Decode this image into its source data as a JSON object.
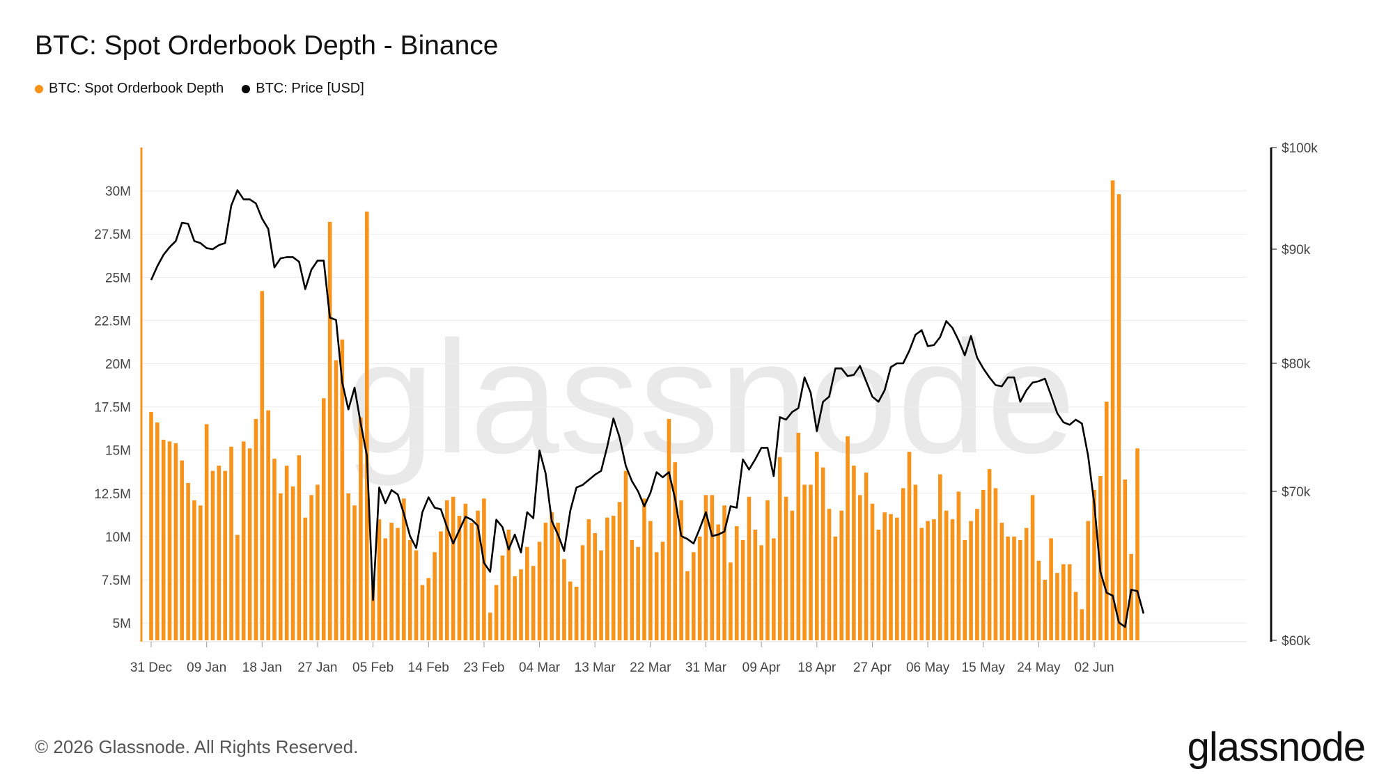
{
  "title": "BTC: Spot Orderbook Depth - Binance",
  "legend": [
    {
      "label": "BTC: Spot Orderbook Depth",
      "color": "#f7931a"
    },
    {
      "label": "BTC: Price [USD]",
      "color": "#000000"
    }
  ],
  "watermark": "glassnode",
  "footer": "© 2026 Glassnode. All Rights Reserved.",
  "brand": "glassnode",
  "chart_data": {
    "type": "bar",
    "start_date": "2025-12-31",
    "x_ticks": [
      "31 Dec",
      "09 Jan",
      "18 Jan",
      "27 Jan",
      "05 Feb",
      "14 Feb",
      "23 Feb",
      "04 Mar",
      "13 Mar",
      "22 Mar",
      "31 Mar",
      "09 Apr",
      "18 Apr",
      "27 Apr",
      "06 May",
      "15 May",
      "24 May",
      "02 Jun"
    ],
    "y_left": {
      "ticks": [
        "5M",
        "7.5M",
        "10M",
        "12.5M",
        "15M",
        "17.5M",
        "20M",
        "22.5M",
        "25M",
        "27.5M",
        "30M"
      ],
      "min": 4,
      "max": 32.5
    },
    "y_right": {
      "ticks": [
        "$60k",
        "$70k",
        "$80k",
        "$90k",
        "$100k"
      ],
      "tick_values": [
        60,
        70,
        80,
        90,
        100
      ]
    },
    "series": [
      {
        "name": "BTC: Spot Orderbook Depth",
        "color": "#f7931a",
        "type": "bar",
        "values": [
          17.2,
          16.6,
          15.6,
          15.5,
          15.4,
          14.4,
          13.1,
          12.1,
          11.8,
          16.5,
          13.8,
          14.1,
          13.8,
          15.2,
          10.1,
          15.5,
          15.1,
          16.8,
          24.2,
          17.3,
          14.5,
          12.5,
          14.1,
          12.9,
          14.7,
          11.1,
          12.4,
          13.0,
          18.0,
          28.2,
          20.2,
          21.4,
          12.5,
          11.8,
          16.9,
          28.8,
          7.3,
          11.0,
          9.9,
          10.8,
          10.5,
          12.2,
          9.8,
          9.2,
          7.2,
          7.6,
          9.1,
          10.3,
          12.1,
          12.3,
          11.2,
          11.9,
          10.8,
          11.5,
          12.2,
          5.6,
          7.2,
          8.9,
          10.4,
          7.7,
          8.1,
          9.4,
          8.3,
          9.7,
          10.8,
          11.4,
          10.8,
          8.7,
          7.4,
          7.1,
          9.5,
          11.0,
          10.2,
          9.2,
          11.1,
          11.2,
          12.0,
          13.8,
          9.8,
          9.4,
          12.2,
          10.9,
          9.1,
          9.7,
          16.8,
          14.3,
          12.1,
          8.0,
          9.1,
          10.0,
          12.4,
          12.4,
          10.7,
          11.8,
          8.5,
          10.6,
          9.8,
          12.3,
          10.4,
          9.5,
          12.1,
          9.9,
          14.6,
          12.3,
          11.5,
          16.0,
          13.0,
          13.0,
          14.9,
          14.0,
          11.6,
          10.0,
          11.5,
          15.8,
          14.1,
          12.4,
          13.7,
          11.9,
          10.4,
          11.4,
          11.3,
          11.1,
          12.8,
          14.9,
          13.0,
          10.5,
          10.9,
          11.0,
          13.6,
          11.5,
          11.0,
          12.6,
          9.8,
          10.9,
          11.6,
          12.7,
          13.9,
          12.8,
          10.8,
          10.0,
          10.0,
          9.8,
          10.5,
          12.4,
          8.6,
          7.5,
          9.9,
          7.9,
          8.4,
          8.4,
          6.8,
          5.8,
          10.9,
          12.7,
          13.5,
          17.8,
          30.6,
          29.8,
          13.3,
          9.0,
          15.1
        ]
      },
      {
        "name": "BTC: Price [USD]",
        "color": "#000000",
        "type": "line",
        "values": [
          87.3,
          88.5,
          89.5,
          90.2,
          90.8,
          92.6,
          92.5,
          90.8,
          90.6,
          90.1,
          90.0,
          90.4,
          90.6,
          94.3,
          95.8,
          94.9,
          94.9,
          94.5,
          93.0,
          92.0,
          88.4,
          89.2,
          89.3,
          89.3,
          88.9,
          86.5,
          88.2,
          89.0,
          89.0,
          84.0,
          83.8,
          78.5,
          76.4,
          78.1,
          75.3,
          72.8,
          62.7,
          70.3,
          69.2,
          70.1,
          69.8,
          68.5,
          67.0,
          66.2,
          68.6,
          69.6,
          68.9,
          68.8,
          67.6,
          66.5,
          67.4,
          68.3,
          68.1,
          67.7,
          65.2,
          64.6,
          68.1,
          67.6,
          66.1,
          67.1,
          65.9,
          68.6,
          68.2,
          73.2,
          71.4,
          68.0,
          67.1,
          66.0,
          68.7,
          70.3,
          70.5,
          70.9,
          71.3,
          71.6,
          73.5,
          75.7,
          74.2,
          72.0,
          70.8,
          70.0,
          69.0,
          69.9,
          71.5,
          71.1,
          71.5,
          69.5,
          67.0,
          66.8,
          66.5,
          67.5,
          68.6,
          67.0,
          67.1,
          67.3,
          69.0,
          68.9,
          72.5,
          71.7,
          72.5,
          73.4,
          73.4,
          71.2,
          75.8,
          75.6,
          76.2,
          76.5,
          78.9,
          77.7,
          74.7,
          77.0,
          77.4,
          79.6,
          79.6,
          79.0,
          79.1,
          79.8,
          78.6,
          77.4,
          77.0,
          77.9,
          79.7,
          80.0,
          80.0,
          81.1,
          82.5,
          82.9,
          81.5,
          81.6,
          82.3,
          83.7,
          83.1,
          82.0,
          80.7,
          82.4,
          80.5,
          79.6,
          78.9,
          78.3,
          78.2,
          78.9,
          78.9,
          77.0,
          77.9,
          78.5,
          78.6,
          78.8,
          77.5,
          76.1,
          75.4,
          75.2,
          75.6,
          75.3,
          72.8,
          69.2,
          64.6,
          63.2,
          63.0,
          61.2,
          60.9,
          63.4,
          63.3,
          61.8
        ]
      }
    ],
    "grid": true
  }
}
